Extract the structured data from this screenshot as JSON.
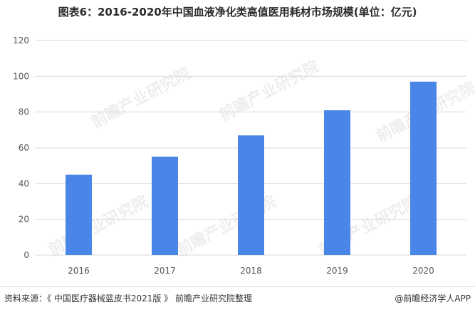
{
  "chart_data": {
    "type": "bar",
    "title": "图表6：2016-2020年中国血液净化类高值医用耗材市场规模(单位：亿元)",
    "categories": [
      "2016",
      "2017",
      "2018",
      "2019",
      "2020"
    ],
    "values": [
      45,
      55,
      67,
      81,
      97
    ],
    "ylim": [
      0,
      120
    ],
    "yticks": [
      0,
      20,
      40,
      60,
      80,
      100,
      120
    ],
    "ylabel": "",
    "xlabel": "",
    "grid": true,
    "bar_color": "#4a86e8",
    "grid_color": "#d9d9d9"
  },
  "watermark": {
    "text": "前瞻产业研究院"
  },
  "footer": {
    "source": "资料来源：《 中国医疗器械蓝皮书2021版 》 前瞻产业研究院整理",
    "brand": "@前瞻经济学人APP"
  }
}
